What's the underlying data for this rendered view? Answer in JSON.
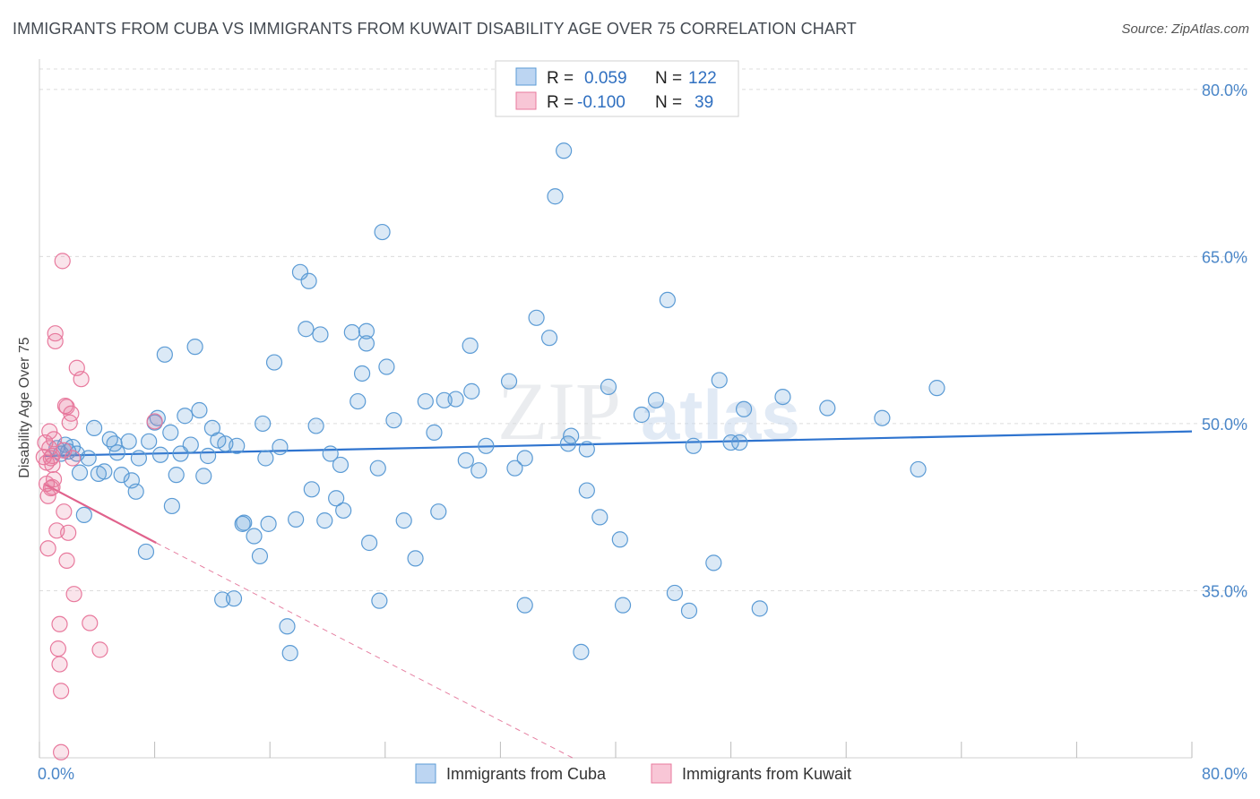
{
  "header": {
    "title": "IMMIGRANTS FROM CUBA VS IMMIGRANTS FROM KUWAIT DISABILITY AGE OVER 75 CORRELATION CHART",
    "source": "Source: ZipAtlas.com"
  },
  "watermark": {
    "zip": "ZIP",
    "atlas": "atlas"
  },
  "legend": {
    "rows": [
      {
        "r_label": "R =",
        "r_value": "0.059",
        "n_label": "N =",
        "n_value": "122",
        "color": "#5b9bd5"
      },
      {
        "r_label": "R =",
        "r_value": "-0.100",
        "n_label": "N =",
        "n_value": "39",
        "color": "#e8799d"
      }
    ]
  },
  "chart_data": {
    "type": "scatter",
    "title": "IMMIGRANTS FROM CUBA VS IMMIGRANTS FROM KUWAIT DISABILITY AGE OVER 75 CORRELATION CHART",
    "xlabel": "",
    "ylabel": "Disability Age Over 75",
    "xlim": [
      0,
      80
    ],
    "ylim": [
      20,
      82
    ],
    "x_tick_labels": [
      "0.0%",
      "80.0%"
    ],
    "y_ticks": [
      35,
      50,
      65,
      80
    ],
    "y_tick_labels": [
      "35.0%",
      "50.0%",
      "65.0%",
      "80.0%"
    ],
    "grid": true,
    "legend_position": "top-center",
    "series": [
      {
        "name": "Immigrants from Cuba",
        "color": "#5b9bd5",
        "trend": {
          "x": [
            0.3,
            80
          ],
          "y": [
            47.1,
            49.3
          ],
          "style": "solid"
        },
        "points": [
          [
            1.2,
            47.8
          ],
          [
            1.5,
            47.3
          ],
          [
            1.8,
            48.1
          ],
          [
            2.0,
            47.5
          ],
          [
            2.3,
            47.9
          ],
          [
            2.6,
            47.3
          ],
          [
            2.8,
            45.6
          ],
          [
            3.1,
            41.8
          ],
          [
            3.4,
            46.9
          ],
          [
            3.8,
            49.6
          ],
          [
            4.1,
            45.5
          ],
          [
            4.5,
            45.7
          ],
          [
            4.9,
            48.6
          ],
          [
            5.2,
            48.2
          ],
          [
            5.4,
            47.4
          ],
          [
            5.7,
            45.4
          ],
          [
            6.2,
            48.4
          ],
          [
            6.4,
            44.9
          ],
          [
            6.7,
            43.9
          ],
          [
            6.9,
            46.9
          ],
          [
            7.4,
            38.5
          ],
          [
            7.6,
            48.4
          ],
          [
            8.0,
            50.1
          ],
          [
            8.2,
            50.5
          ],
          [
            8.4,
            47.2
          ],
          [
            8.7,
            56.2
          ],
          [
            9.1,
            49.2
          ],
          [
            9.2,
            42.6
          ],
          [
            9.5,
            45.4
          ],
          [
            9.8,
            47.3
          ],
          [
            10.1,
            50.7
          ],
          [
            10.5,
            48.1
          ],
          [
            10.8,
            56.9
          ],
          [
            11.1,
            51.2
          ],
          [
            11.4,
            45.3
          ],
          [
            11.7,
            47.1
          ],
          [
            12.0,
            49.6
          ],
          [
            12.4,
            48.5
          ],
          [
            12.7,
            34.2
          ],
          [
            12.9,
            48.2
          ],
          [
            13.5,
            34.3
          ],
          [
            13.7,
            48.0
          ],
          [
            14.1,
            41.0
          ],
          [
            14.2,
            41.1
          ],
          [
            14.9,
            39.9
          ],
          [
            15.3,
            38.1
          ],
          [
            15.5,
            50.0
          ],
          [
            15.7,
            46.9
          ],
          [
            15.9,
            41.0
          ],
          [
            16.3,
            55.5
          ],
          [
            16.7,
            47.9
          ],
          [
            17.2,
            31.8
          ],
          [
            17.4,
            29.4
          ],
          [
            17.8,
            41.4
          ],
          [
            18.1,
            63.6
          ],
          [
            18.5,
            58.5
          ],
          [
            18.7,
            62.8
          ],
          [
            18.9,
            44.1
          ],
          [
            19.2,
            49.8
          ],
          [
            19.5,
            58.0
          ],
          [
            19.8,
            41.3
          ],
          [
            20.2,
            47.3
          ],
          [
            20.6,
            43.3
          ],
          [
            20.9,
            46.3
          ],
          [
            21.1,
            42.2
          ],
          [
            21.7,
            58.2
          ],
          [
            22.1,
            52.0
          ],
          [
            22.4,
            54.5
          ],
          [
            22.7,
            57.2
          ],
          [
            22.9,
            39.3
          ],
          [
            23.5,
            46.0
          ],
          [
            23.6,
            34.1
          ],
          [
            23.8,
            67.2
          ],
          [
            24.1,
            55.1
          ],
          [
            24.6,
            50.3
          ],
          [
            25.3,
            41.3
          ],
          [
            26.1,
            37.9
          ],
          [
            26.8,
            52.0
          ],
          [
            27.4,
            49.2
          ],
          [
            27.7,
            42.1
          ],
          [
            28.1,
            52.1
          ],
          [
            28.9,
            52.2
          ],
          [
            29.6,
            46.7
          ],
          [
            29.9,
            57.0
          ],
          [
            30.0,
            52.9
          ],
          [
            30.5,
            45.8
          ],
          [
            31.0,
            48.0
          ],
          [
            32.6,
            53.8
          ],
          [
            33.0,
            46.0
          ],
          [
            33.7,
            46.9
          ],
          [
            33.7,
            33.7
          ],
          [
            34.5,
            59.5
          ],
          [
            35.4,
            57.7
          ],
          [
            36.4,
            74.5
          ],
          [
            35.8,
            70.4
          ],
          [
            36.9,
            48.9
          ],
          [
            37.6,
            29.5
          ],
          [
            38.0,
            47.7
          ],
          [
            38.0,
            44.0
          ],
          [
            38.9,
            41.6
          ],
          [
            39.5,
            53.3
          ],
          [
            40.3,
            39.6
          ],
          [
            40.5,
            33.7
          ],
          [
            41.8,
            50.8
          ],
          [
            42.8,
            52.1
          ],
          [
            43.6,
            61.1
          ],
          [
            44.1,
            34.8
          ],
          [
            45.1,
            33.2
          ],
          [
            45.4,
            48.0
          ],
          [
            46.8,
            37.5
          ],
          [
            47.2,
            53.9
          ],
          [
            48.0,
            48.3
          ],
          [
            48.6,
            48.3
          ],
          [
            48.9,
            51.3
          ],
          [
            50.0,
            33.4
          ],
          [
            51.6,
            52.4
          ],
          [
            54.7,
            51.4
          ],
          [
            58.5,
            50.5
          ],
          [
            61.0,
            45.9
          ],
          [
            62.3,
            53.2
          ],
          [
            36.7,
            48.2
          ],
          [
            22.7,
            58.3
          ]
        ]
      },
      {
        "name": "Immigrants from Kuwait",
        "color": "#e8799d",
        "trend": {
          "x": [
            0.3,
            8.1
          ],
          "y": [
            44.6,
            39.3
          ],
          "style": "solid",
          "extended_x": [
            8.1,
            37.0
          ],
          "extended_y": [
            39.3,
            20.0
          ],
          "extended_style": "dashed"
        },
        "points": [
          [
            0.3,
            47.0
          ],
          [
            0.4,
            48.3
          ],
          [
            0.5,
            46.5
          ],
          [
            0.5,
            44.6
          ],
          [
            0.6,
            43.5
          ],
          [
            0.6,
            38.8
          ],
          [
            0.7,
            49.3
          ],
          [
            0.7,
            47.8
          ],
          [
            0.8,
            46.9
          ],
          [
            0.8,
            44.2
          ],
          [
            0.9,
            47.1
          ],
          [
            0.9,
            46.3
          ],
          [
            1.0,
            48.6
          ],
          [
            1.1,
            57.4
          ],
          [
            1.1,
            58.1
          ],
          [
            1.2,
            40.4
          ],
          [
            1.3,
            29.8
          ],
          [
            1.4,
            32.0
          ],
          [
            1.4,
            28.4
          ],
          [
            1.5,
            26.0
          ],
          [
            1.6,
            64.6
          ],
          [
            1.7,
            42.1
          ],
          [
            1.8,
            51.6
          ],
          [
            1.9,
            51.5
          ],
          [
            1.9,
            37.7
          ],
          [
            2.0,
            40.2
          ],
          [
            2.1,
            50.1
          ],
          [
            2.2,
            50.9
          ],
          [
            2.3,
            46.9
          ],
          [
            2.4,
            34.7
          ],
          [
            1.7,
            47.6
          ],
          [
            2.6,
            55.0
          ],
          [
            2.9,
            54.0
          ],
          [
            3.5,
            32.1
          ],
          [
            4.2,
            29.7
          ],
          [
            1.5,
            20.5
          ],
          [
            1.0,
            45.0
          ],
          [
            0.9,
            44.3
          ],
          [
            8.0,
            50.2
          ]
        ]
      }
    ]
  },
  "bottom_legend": {
    "items": [
      {
        "label": "Immigrants from Cuba",
        "color": "#5b9bd5"
      },
      {
        "label": "Immigrants from Kuwait",
        "color": "#e8799d"
      }
    ]
  }
}
